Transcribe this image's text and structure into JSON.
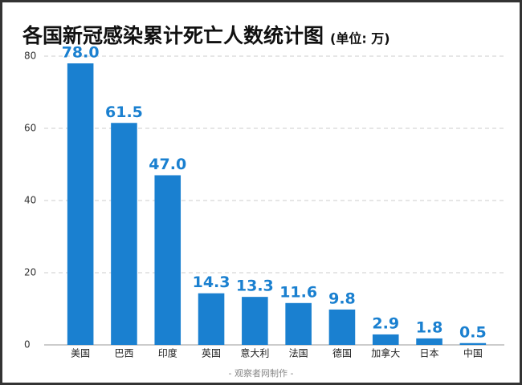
{
  "chart_data": {
    "type": "bar",
    "title": "各国新冠感染累计死亡人数统计图",
    "subtitle": "(单位: 万)",
    "categories": [
      "美国",
      "巴西",
      "印度",
      "英国",
      "意大利",
      "法国",
      "德国",
      "加拿大",
      "日本",
      "中国"
    ],
    "values": [
      78.0,
      61.5,
      47.0,
      14.3,
      13.3,
      11.6,
      9.8,
      2.9,
      1.8,
      0.5
    ],
    "value_labels": [
      "78.0",
      "61.5",
      "47.0",
      "14.3",
      "13.3",
      "11.6",
      "9.8",
      "2.9",
      "1.8",
      "0.5"
    ],
    "color": "#1a80d0",
    "ylim": [
      0,
      80
    ],
    "yticks": [
      0,
      20,
      40,
      60,
      80
    ],
    "grid": true,
    "footer": "- 观察者网制作 -"
  }
}
